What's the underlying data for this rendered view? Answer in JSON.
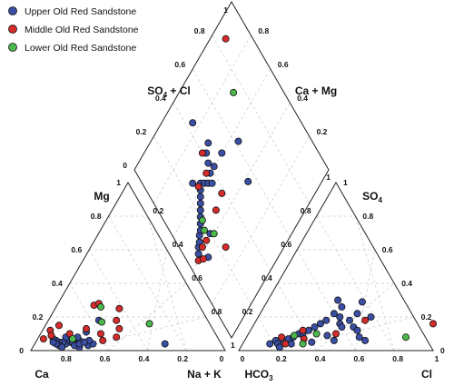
{
  "chart_data": {
    "type": "scatter",
    "title": "",
    "legend": {
      "placement": "top-left",
      "entries": [
        {
          "name": "Upper Old Red Sandstone",
          "color": "#3a4fa3"
        },
        {
          "name": "Middle Old Red Sandstone",
          "color": "#d42b2b"
        },
        {
          "name": "Lower Old Red Sandstone",
          "color": "#4cb84c"
        }
      ]
    },
    "grid": true,
    "cation_triangle": {
      "axes": {
        "bottom": "Ca",
        "bottom_right": "Na + K",
        "left": "Mg"
      },
      "ticks": {
        "bottom": [
          "0.8",
          "0.6",
          "0.4",
          "0.2",
          "0"
        ],
        "left": [
          "0",
          "0.2",
          "0.4",
          "0.6",
          "0.8",
          "1"
        ],
        "right": [
          "0.2",
          "0.4",
          "0.6",
          "0.8",
          "1"
        ]
      },
      "series": [
        {
          "name": "Upper Old Red Sandstone",
          "points": [
            [
              0.22,
              0.06
            ],
            [
              0.2,
              0.04
            ],
            [
              0.18,
              0.05
            ],
            [
              0.16,
              0.04
            ],
            [
              0.14,
              0.05
            ],
            [
              0.12,
              0.05
            ],
            [
              0.1,
              0.06
            ],
            [
              0.08,
              0.07
            ],
            [
              0.13,
              0.03
            ],
            [
              0.17,
              0.06
            ],
            [
              0.19,
              0.05
            ],
            [
              0.21,
              0.03
            ],
            [
              0.24,
              0.02
            ],
            [
              0.28,
              0.03
            ],
            [
              0.3,
              0.04
            ],
            [
              0.27,
              0.06
            ],
            [
              0.23,
              0.04
            ],
            [
              0.15,
              0.02
            ],
            [
              0.11,
              0.04
            ],
            [
              0.09,
              0.05
            ],
            [
              0.25,
              0.05
            ],
            [
              0.2,
              0.08
            ],
            [
              0.26,
              0.18
            ],
            [
              0.23,
              0.11
            ],
            [
              0.67,
              0.04
            ],
            [
              0.14,
              0.08
            ]
          ]
        },
        {
          "name": "Middle Old Red Sandstone",
          "points": [
            [
              0.03,
              0.07
            ],
            [
              0.04,
              0.12
            ],
            [
              0.07,
              0.15
            ],
            [
              0.19,
              0.27
            ],
            [
              0.21,
              0.28
            ],
            [
              0.33,
              0.25
            ],
            [
              0.35,
              0.18
            ],
            [
              0.39,
              0.13
            ],
            [
              0.4,
              0.08
            ],
            [
              0.34,
              0.06
            ],
            [
              0.31,
              0.1
            ],
            [
              0.06,
              0.09
            ],
            [
              0.15,
              0.1
            ],
            [
              0.22,
              0.13
            ]
          ]
        },
        {
          "name": "Lower Old Red Sandstone",
          "points": [
            [
              0.23,
              0.26
            ],
            [
              0.28,
              0.17
            ],
            [
              0.53,
              0.16
            ],
            [
              0.18,
              0.07
            ]
          ]
        }
      ]
    },
    "anion_triangle": {
      "axes": {
        "bottom_left": "HCO3",
        "bottom": "Cl",
        "right": "SO4"
      },
      "ticks": {
        "bottom": [
          "0",
          "0.2",
          "0.4",
          "0.6",
          "0.8",
          "1"
        ],
        "left": [
          "1",
          "0.8",
          "0.6",
          "0.4",
          "0.2"
        ],
        "right": [
          "0",
          "0.2",
          "0.4",
          "0.6",
          "0.8",
          "1"
        ]
      },
      "series": [
        {
          "name": "Upper Old Red Sandstone",
          "points": [
            [
              0.14,
              0.04
            ],
            [
              0.16,
              0.06
            ],
            [
              0.18,
              0.04
            ],
            [
              0.2,
              0.06
            ],
            [
              0.22,
              0.07
            ],
            [
              0.24,
              0.08
            ],
            [
              0.26,
              0.1
            ],
            [
              0.28,
              0.1
            ],
            [
              0.3,
              0.12
            ],
            [
              0.32,
              0.14
            ],
            [
              0.34,
              0.16
            ],
            [
              0.36,
              0.18
            ],
            [
              0.38,
              0.22
            ],
            [
              0.4,
              0.26
            ],
            [
              0.42,
              0.2
            ],
            [
              0.44,
              0.16
            ],
            [
              0.46,
              0.14
            ],
            [
              0.48,
              0.18
            ],
            [
              0.5,
              0.22
            ],
            [
              0.52,
              0.14
            ],
            [
              0.55,
              0.12
            ],
            [
              0.58,
              0.08
            ],
            [
              0.62,
              0.06
            ],
            [
              0.2,
              0.02
            ],
            [
              0.25,
              0.04
            ],
            [
              0.35,
              0.05
            ],
            [
              0.41,
              0.09
            ],
            [
              0.46,
              0.06
            ],
            [
              0.58,
              0.2
            ],
            [
              0.49,
              0.29
            ],
            [
              0.36,
              0.3
            ]
          ]
        },
        {
          "name": "Middle Old Red Sandstone",
          "points": [
            [
              0.18,
              0.08
            ],
            [
              0.22,
              0.04
            ],
            [
              0.3,
              0.07
            ],
            [
              0.45,
              0.1
            ],
            [
              0.56,
              0.18
            ],
            [
              0.92,
              0.16
            ],
            [
              0.27,
              0.12
            ]
          ]
        },
        {
          "name": "Lower Old Red Sandstone",
          "points": [
            [
              0.24,
              0.09
            ],
            [
              0.35,
              0.1
            ],
            [
              0.31,
              0.04
            ],
            [
              0.82,
              0.08
            ]
          ]
        }
      ]
    },
    "diamond": {
      "axes": {
        "upper_left": "SO4 + Cl",
        "upper_right": "Ca + Mg"
      },
      "ticks": {
        "upper_left": [
          "0",
          "0.2",
          "0.4",
          "0.6",
          "0.8",
          "1"
        ],
        "upper_right": [
          "1",
          "0.8",
          "0.6",
          "0.4",
          "0.2"
        ]
      },
      "series": [
        {
          "name": "Upper Old Red Sandstone",
          "points": [
            [
              0.08,
              0.42
            ],
            [
              0.1,
              0.44
            ],
            [
              0.12,
              0.45
            ],
            [
              0.14,
              0.47
            ],
            [
              0.16,
              0.48
            ],
            [
              0.18,
              0.5
            ],
            [
              0.2,
              0.52
            ],
            [
              0.22,
              0.54
            ],
            [
              0.24,
              0.56
            ],
            [
              0.26,
              0.58
            ],
            [
              0.28,
              0.6
            ],
            [
              0.3,
              0.62
            ],
            [
              0.32,
              0.6
            ],
            [
              0.34,
              0.58
            ],
            [
              0.36,
              0.56
            ],
            [
              0.38,
              0.6
            ],
            [
              0.4,
              0.64
            ],
            [
              0.42,
              0.68
            ],
            [
              0.46,
              0.7
            ],
            [
              0.5,
              0.6
            ],
            [
              0.12,
              0.36
            ],
            [
              0.55,
              0.38
            ],
            [
              0.2,
              0.42
            ],
            [
              0.62,
              0.55
            ],
            [
              0.26,
              0.66
            ],
            [
              0.44,
              0.84
            ],
            [
              0.42,
              0.6
            ]
          ]
        },
        {
          "name": "Middle Old Red Sandstone",
          "points": [
            [
              0.06,
              0.4
            ],
            [
              0.09,
              0.38
            ],
            [
              0.12,
              0.42
            ],
            [
              0.16,
              0.42
            ],
            [
              0.36,
              0.62
            ],
            [
              0.3,
              0.46
            ],
            [
              0.24,
              0.3
            ],
            [
              0.38,
              0.48
            ],
            [
              0.86,
              0.92
            ],
            [
              0.4,
              0.7
            ],
            [
              0.28,
              0.62
            ]
          ]
        },
        {
          "name": "Lower Old Red Sandstone",
          "points": [
            [
              0.18,
              0.46
            ],
            [
              0.22,
              0.4
            ],
            [
              0.74,
              0.72
            ],
            [
              0.2,
              0.5
            ]
          ]
        }
      ]
    }
  }
}
